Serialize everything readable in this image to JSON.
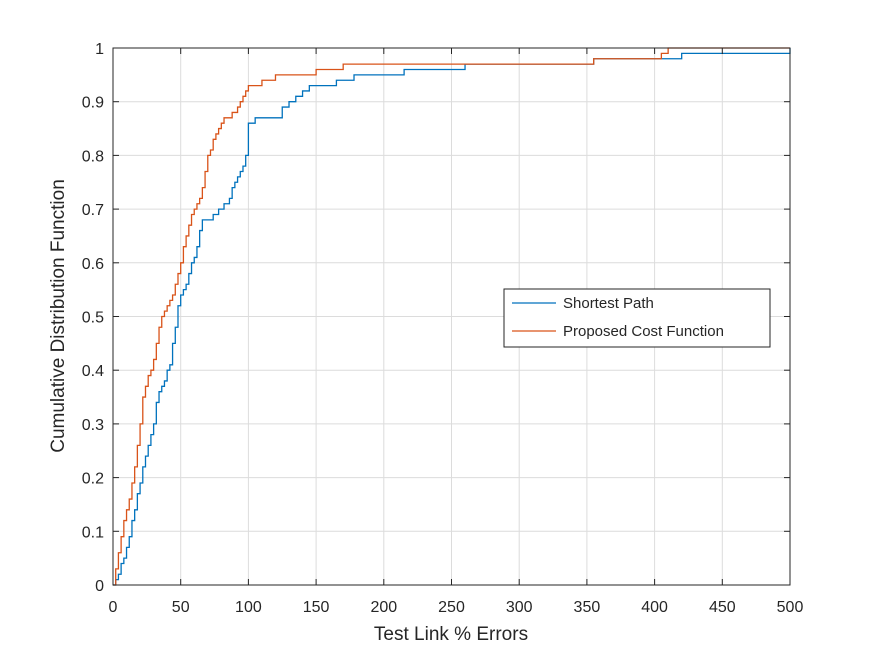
{
  "colors": {
    "shortest_path": "#0072bd",
    "proposed_cost_function": "#d95319",
    "grid": "#dcdcdc",
    "axes": "#262626",
    "background": "#ffffff"
  },
  "chart_data": {
    "type": "line",
    "subtype": "step-cdf",
    "title": "",
    "xlabel": "Test Link % Errors",
    "ylabel": "Cumulative Distribution Function",
    "xlim": [
      0,
      500
    ],
    "ylim": [
      0,
      1
    ],
    "xticks": [
      0,
      50,
      100,
      150,
      200,
      250,
      300,
      350,
      400,
      450,
      500
    ],
    "yticks": [
      0,
      0.1,
      0.2,
      0.3,
      0.4,
      0.5,
      0.6,
      0.7,
      0.8,
      0.9,
      1
    ],
    "xtick_labels": [
      "0",
      "50",
      "100",
      "150",
      "200",
      "250",
      "300",
      "350",
      "400",
      "450",
      "500"
    ],
    "ytick_labels": [
      "0",
      "0.1",
      "0.2",
      "0.3",
      "0.4",
      "0.5",
      "0.6",
      "0.7",
      "0.8",
      "0.9",
      "1"
    ],
    "grid": true,
    "box": true,
    "legend_position": "right",
    "series": [
      {
        "name": "Shortest Path",
        "color": "#0072bd",
        "x": [
          0,
          2,
          4,
          6,
          8,
          10,
          12,
          14,
          16,
          18,
          20,
          22,
          24,
          26,
          28,
          30,
          32,
          34,
          36,
          38,
          40,
          42,
          44,
          46,
          48,
          50,
          52,
          54,
          56,
          58,
          60,
          62,
          64,
          66,
          70,
          74,
          78,
          82,
          86,
          88,
          90,
          92,
          94,
          96,
          98,
          100,
          105,
          110,
          115,
          120,
          125,
          130,
          135,
          140,
          145,
          150,
          165,
          178,
          200,
          215,
          260,
          355,
          420,
          500
        ],
        "y": [
          0,
          0.01,
          0.02,
          0.04,
          0.05,
          0.07,
          0.09,
          0.12,
          0.14,
          0.17,
          0.19,
          0.22,
          0.24,
          0.26,
          0.28,
          0.3,
          0.34,
          0.36,
          0.37,
          0.38,
          0.4,
          0.41,
          0.45,
          0.48,
          0.52,
          0.54,
          0.55,
          0.56,
          0.58,
          0.6,
          0.61,
          0.63,
          0.66,
          0.68,
          0.68,
          0.69,
          0.7,
          0.71,
          0.72,
          0.74,
          0.75,
          0.76,
          0.77,
          0.78,
          0.8,
          0.86,
          0.87,
          0.87,
          0.87,
          0.87,
          0.89,
          0.9,
          0.91,
          0.92,
          0.93,
          0.93,
          0.94,
          0.95,
          0.95,
          0.96,
          0.97,
          0.98,
          0.99,
          1.0
        ]
      },
      {
        "name": "Proposed Cost Function",
        "color": "#d95319",
        "x": [
          0,
          2,
          4,
          6,
          8,
          10,
          12,
          14,
          16,
          18,
          20,
          22,
          24,
          26,
          28,
          30,
          32,
          34,
          36,
          38,
          40,
          42,
          44,
          46,
          48,
          50,
          52,
          54,
          56,
          58,
          60,
          62,
          64,
          66,
          68,
          70,
          72,
          74,
          76,
          78,
          80,
          82,
          84,
          86,
          88,
          90,
          92,
          94,
          96,
          98,
          100,
          110,
          120,
          130,
          150,
          170,
          200,
          260,
          355,
          405,
          410,
          500
        ],
        "y": [
          0,
          0.03,
          0.06,
          0.09,
          0.12,
          0.14,
          0.16,
          0.19,
          0.22,
          0.26,
          0.3,
          0.35,
          0.37,
          0.39,
          0.4,
          0.42,
          0.45,
          0.48,
          0.5,
          0.51,
          0.52,
          0.53,
          0.54,
          0.56,
          0.58,
          0.6,
          0.63,
          0.65,
          0.67,
          0.69,
          0.7,
          0.71,
          0.72,
          0.74,
          0.77,
          0.8,
          0.81,
          0.83,
          0.84,
          0.85,
          0.86,
          0.87,
          0.87,
          0.87,
          0.88,
          0.88,
          0.89,
          0.9,
          0.91,
          0.92,
          0.93,
          0.94,
          0.95,
          0.95,
          0.96,
          0.97,
          0.97,
          0.97,
          0.98,
          0.99,
          1.0,
          1.0
        ]
      }
    ]
  }
}
